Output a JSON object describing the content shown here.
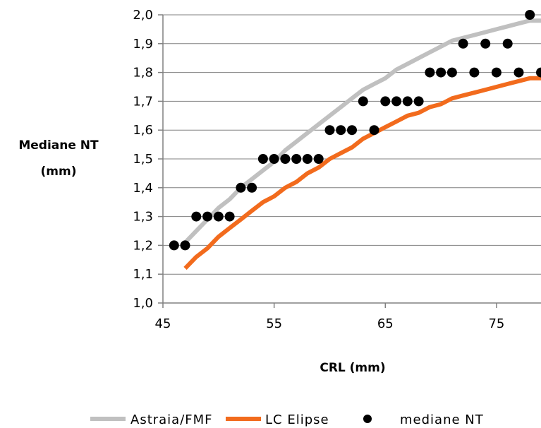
{
  "chart_data": {
    "type": "line",
    "title": "",
    "xlabel": "CRL (mm)",
    "ylabel_lines": [
      "Mediane NT",
      "(mm)"
    ],
    "xlim": [
      45,
      79
    ],
    "ylim": [
      1.0,
      2.0
    ],
    "xticks": [
      45,
      55,
      65,
      75
    ],
    "xtick_labels": [
      "45",
      "55",
      "65",
      "75"
    ],
    "yticks": [
      1.0,
      1.1,
      1.2,
      1.3,
      1.4,
      1.5,
      1.6,
      1.7,
      1.8,
      1.9,
      2.0
    ],
    "ytick_labels": [
      "1,0",
      "1,1",
      "1,2",
      "1,3",
      "1,4",
      "1,5",
      "1,6",
      "1,7",
      "1,8",
      "1,9",
      "2,0"
    ],
    "grid": "horizontal",
    "legend_position": "bottom",
    "series": [
      {
        "name": "Astraia/FMF",
        "kind": "line",
        "color": "#c0c0c0",
        "x": [
          47,
          48,
          49,
          50,
          51,
          52,
          53,
          54,
          55,
          56,
          57,
          58,
          59,
          60,
          61,
          62,
          63,
          64,
          65,
          66,
          67,
          68,
          69,
          70,
          71,
          72,
          73,
          74,
          75,
          76,
          77,
          78,
          79
        ],
        "y": [
          1.21,
          1.25,
          1.29,
          1.33,
          1.36,
          1.4,
          1.43,
          1.46,
          1.49,
          1.53,
          1.56,
          1.59,
          1.62,
          1.65,
          1.68,
          1.71,
          1.74,
          1.76,
          1.78,
          1.81,
          1.83,
          1.85,
          1.87,
          1.89,
          1.91,
          1.92,
          1.93,
          1.94,
          1.95,
          1.96,
          1.97,
          1.98,
          1.98
        ]
      },
      {
        "name": "LC Elipse",
        "kind": "line",
        "color": "#f26b1d",
        "x": [
          47,
          48,
          49,
          50,
          51,
          52,
          53,
          54,
          55,
          56,
          57,
          58,
          59,
          60,
          61,
          62,
          63,
          64,
          65,
          66,
          67,
          68,
          69,
          70,
          71,
          72,
          73,
          74,
          75,
          76,
          77,
          78,
          79
        ],
        "y": [
          1.12,
          1.16,
          1.19,
          1.23,
          1.26,
          1.29,
          1.32,
          1.35,
          1.37,
          1.4,
          1.42,
          1.45,
          1.47,
          1.5,
          1.52,
          1.54,
          1.57,
          1.59,
          1.61,
          1.63,
          1.65,
          1.66,
          1.68,
          1.69,
          1.71,
          1.72,
          1.73,
          1.74,
          1.75,
          1.76,
          1.77,
          1.78,
          1.78
        ]
      },
      {
        "name": "mediane NT",
        "kind": "scatter",
        "color": "#000000",
        "x": [
          46,
          47,
          48,
          49,
          50,
          51,
          52,
          53,
          54,
          55,
          56,
          57,
          58,
          59,
          60,
          61,
          62,
          63,
          64,
          65,
          66,
          67,
          68,
          69,
          70,
          71,
          72,
          73,
          74,
          75,
          76,
          77,
          78,
          79
        ],
        "y": [
          1.2,
          1.2,
          1.3,
          1.3,
          1.3,
          1.3,
          1.4,
          1.4,
          1.5,
          1.5,
          1.5,
          1.5,
          1.5,
          1.5,
          1.6,
          1.6,
          1.6,
          1.7,
          1.6,
          1.7,
          1.7,
          1.7,
          1.7,
          1.8,
          1.8,
          1.8,
          1.9,
          1.8,
          1.9,
          1.8,
          1.9,
          1.8,
          2.0,
          1.8
        ]
      }
    ]
  }
}
